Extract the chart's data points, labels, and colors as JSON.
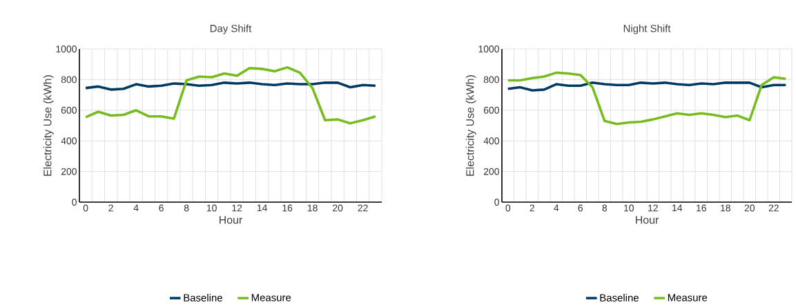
{
  "chart_data": [
    {
      "type": "line",
      "title": "Day Shift",
      "xlabel": "Hour",
      "ylabel": "Electricity Use (kWh)",
      "x": [
        0,
        1,
        2,
        3,
        4,
        5,
        6,
        7,
        8,
        9,
        10,
        11,
        12,
        13,
        14,
        15,
        16,
        17,
        18,
        19,
        20,
        21,
        22,
        23
      ],
      "xlim": [
        -0.5,
        23.5
      ],
      "xticks": [
        0,
        2,
        4,
        6,
        8,
        10,
        12,
        14,
        16,
        18,
        20,
        22
      ],
      "ylim": [
        0,
        1000
      ],
      "yticks": [
        0,
        200,
        400,
        600,
        800,
        1000
      ],
      "grid": true,
      "legend": "bottom",
      "series": [
        {
          "name": "Baseline",
          "color": "#003a63",
          "values": [
            745,
            755,
            735,
            740,
            770,
            755,
            760,
            775,
            770,
            760,
            765,
            780,
            775,
            780,
            770,
            765,
            775,
            770,
            770,
            780,
            780,
            750,
            765,
            760
          ]
        },
        {
          "name": "Measure",
          "color": "#77bc1f",
          "values": [
            555,
            590,
            565,
            570,
            600,
            560,
            560,
            545,
            795,
            820,
            815,
            840,
            825,
            875,
            870,
            855,
            880,
            845,
            745,
            535,
            540,
            515,
            535,
            560
          ]
        }
      ]
    },
    {
      "type": "line",
      "title": "Night Shift",
      "xlabel": "Hour",
      "ylabel": "Electricity Use (kWh)",
      "x": [
        0,
        1,
        2,
        3,
        4,
        5,
        6,
        7,
        8,
        9,
        10,
        11,
        12,
        13,
        14,
        15,
        16,
        17,
        18,
        19,
        20,
        21,
        22,
        23
      ],
      "xlim": [
        -0.5,
        23.5
      ],
      "xticks": [
        0,
        2,
        4,
        6,
        8,
        10,
        12,
        14,
        16,
        18,
        20,
        22
      ],
      "ylim": [
        0,
        1000
      ],
      "yticks": [
        0,
        200,
        400,
        600,
        800,
        1000
      ],
      "grid": true,
      "legend": "bottom",
      "series": [
        {
          "name": "Baseline",
          "color": "#003a63",
          "values": [
            740,
            750,
            730,
            735,
            770,
            760,
            760,
            780,
            770,
            765,
            765,
            780,
            775,
            780,
            770,
            765,
            775,
            770,
            780,
            780,
            780,
            750,
            765,
            765
          ]
        },
        {
          "name": "Measure",
          "color": "#77bc1f",
          "values": [
            795,
            795,
            810,
            820,
            845,
            840,
            830,
            750,
            530,
            510,
            520,
            525,
            540,
            560,
            580,
            570,
            580,
            570,
            555,
            565,
            535,
            765,
            815,
            805
          ]
        }
      ]
    }
  ]
}
